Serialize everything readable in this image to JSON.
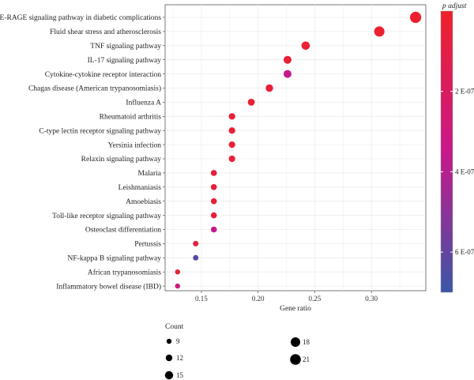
{
  "chart_data": {
    "type": "scatter",
    "xlabel": "Gene ratio",
    "x_ticks": [
      0.15,
      0.2,
      0.25,
      0.3
    ],
    "xlim": [
      0.118,
      0.348
    ],
    "color_legend": {
      "title": "p adjust",
      "ticks": [
        {
          "label": "2 E-07",
          "value": 2e-07
        },
        {
          "label": "4 E-07",
          "value": 4e-07
        },
        {
          "label": "6 E-07",
          "value": 6e-07
        }
      ],
      "range": [
        1e-10,
        7e-07
      ],
      "low_color": "#ee2129",
      "mid_color": "#c8188a",
      "high_color": "#3a57a7"
    },
    "size_legend": {
      "title": "Count",
      "items": [
        {
          "label": "9",
          "value": 9
        },
        {
          "label": "12",
          "value": 12
        },
        {
          "label": "15",
          "value": 15
        },
        {
          "label": "18",
          "value": 18
        },
        {
          "label": "21",
          "value": 21
        }
      ]
    },
    "points": [
      {
        "term": "AGE-RAGE signaling pathway in diabetic complications",
        "ratio": 0.339,
        "count": 21,
        "p": 2e-08
      },
      {
        "term": "Fluid shear stress and atherosclerosis",
        "ratio": 0.307,
        "count": 19,
        "p": 2e-08
      },
      {
        "term": "TNF signaling pathway",
        "ratio": 0.242,
        "count": 15,
        "p": 4e-08
      },
      {
        "term": "IL-17 signaling pathway",
        "ratio": 0.226,
        "count": 14,
        "p": 5e-08
      },
      {
        "term": "Cytokine-cytokine receptor interaction",
        "ratio": 0.226,
        "count": 14,
        "p": 3.6e-07
      },
      {
        "term": "Chagas disease (American trypanosomiasis)",
        "ratio": 0.21,
        "count": 13,
        "p": 5e-08
      },
      {
        "term": "Influenza A",
        "ratio": 0.194,
        "count": 12,
        "p": 4e-08
      },
      {
        "term": "Rheumatoid arthritis",
        "ratio": 0.177,
        "count": 11,
        "p": 5e-08
      },
      {
        "term": "C-type lectin receptor signaling pathway",
        "ratio": 0.177,
        "count": 11,
        "p": 5e-08
      },
      {
        "term": "Yersinia infection",
        "ratio": 0.177,
        "count": 11,
        "p": 5e-08
      },
      {
        "term": "Relaxin signaling pathway",
        "ratio": 0.177,
        "count": 11,
        "p": 5e-08
      },
      {
        "term": "Malaria",
        "ratio": 0.161,
        "count": 10,
        "p": 6e-08
      },
      {
        "term": "Leishmaniasis",
        "ratio": 0.161,
        "count": 10,
        "p": 7e-08
      },
      {
        "term": "Amoebiasis",
        "ratio": 0.161,
        "count": 10,
        "p": 7e-08
      },
      {
        "term": "Toll-like receptor signaling pathway",
        "ratio": 0.161,
        "count": 10,
        "p": 7e-08
      },
      {
        "term": "Osteoclast differentiation",
        "ratio": 0.161,
        "count": 10,
        "p": 3.6e-07
      },
      {
        "term": "Pertussis",
        "ratio": 0.145,
        "count": 9,
        "p": 8e-08
      },
      {
        "term": "NF-kappa B signaling pathway",
        "ratio": 0.145,
        "count": 9,
        "p": 6.2e-07
      },
      {
        "term": "African trypanosomiasis",
        "ratio": 0.129,
        "count": 8,
        "p": 6e-08
      },
      {
        "term": "Inflammatory bowel disease (IBD)",
        "ratio": 0.129,
        "count": 8,
        "p": 3e-07
      }
    ]
  }
}
